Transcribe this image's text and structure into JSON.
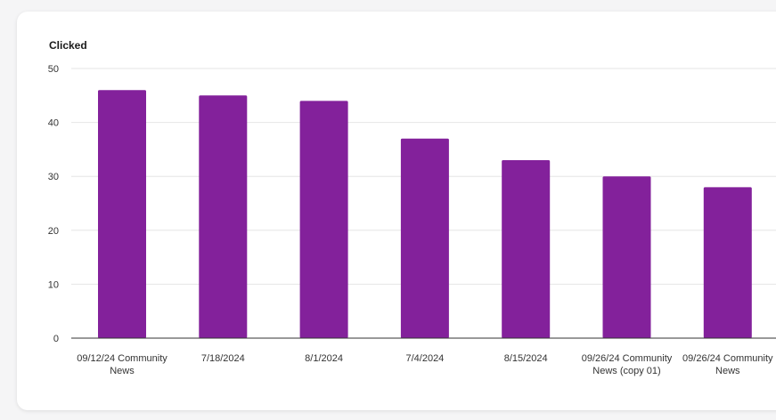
{
  "chart_data": {
    "type": "bar",
    "title": "Clicked",
    "categories": [
      [
        "09/12/24 Community",
        "News"
      ],
      [
        "7/18/2024"
      ],
      [
        "8/1/2024"
      ],
      [
        "7/4/2024"
      ],
      [
        "8/15/2024"
      ],
      [
        "09/26/24 Community",
        "News (copy 01)"
      ],
      [
        "09/26/24 Community",
        "News"
      ]
    ],
    "values": [
      46,
      45,
      44,
      37,
      33,
      30,
      28
    ],
    "ylim": [
      0,
      50
    ],
    "yticks": [
      "0",
      "10",
      "20",
      "30",
      "40",
      "50"
    ],
    "grid": true,
    "bar_color": "#83219b",
    "xlabel": "",
    "ylabel": ""
  }
}
